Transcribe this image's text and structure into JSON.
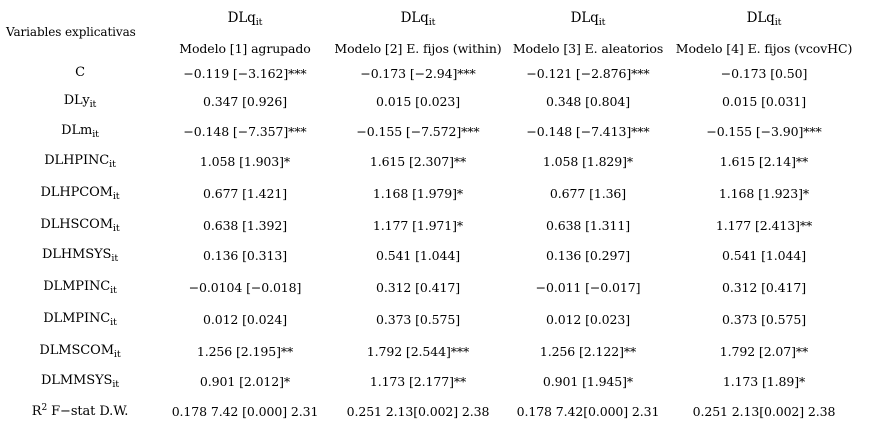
{
  "header": {
    "left_label": "Variables explicativas",
    "dependent": [
      {
        "base": "DLq",
        "sub": "it"
      },
      {
        "base": "DLq",
        "sub": "it"
      },
      {
        "base": "DLq",
        "sub": "it"
      },
      {
        "base": "DLq",
        "sub": "it"
      }
    ],
    "models": [
      "Modelo [1] agrupado",
      "Modelo [2] E. fijos (within)",
      "Modelo [3] E. aleatorios",
      "Modelo [4] E. fijos (vcovHC)"
    ]
  },
  "rows": [
    {
      "var": "C",
      "sub": "",
      "vals": [
        "−0.119 [−3.162]***",
        "−0.173 [−2.94]***",
        "−0.121 [−2.876]***",
        "−0.173 [0.50]"
      ]
    },
    {
      "var": "DLy",
      "sub": "it",
      "vals": [
        "0.347 [0.926]",
        "0.015 [0.023]",
        "0.348 [0.804]",
        "0.015 [0.031]"
      ]
    },
    {
      "var": "DLm",
      "sub": "it",
      "vals": [
        "−0.148 [−7.357]***",
        "−0.155 [−7.572]***",
        "−0.148 [−7.413]***",
        "−0.155 [−3.90]***"
      ]
    },
    {
      "var": "DLHPINC",
      "sub": "it",
      "vals": [
        "1.058 [1.903]*",
        "1.615 [2.307]**",
        "1.058 [1.829]*",
        "1.615 [2.14]**"
      ]
    },
    {
      "var": "DLHPCOM",
      "sub": "it",
      "vals": [
        "0.677 [1.421]",
        "1.168 [1.979]*",
        "0.677 [1.36]",
        "1.168 [1.923]*"
      ]
    },
    {
      "var": "DLHSCOM",
      "sub": "it",
      "vals": [
        "0.638 [1.392]",
        "1.177 [1.971]*",
        "0.638 [1.311]",
        "1.177 [2.413]**"
      ]
    },
    {
      "var": "DLHMSYS",
      "sub": "it",
      "vals": [
        "0.136 [0.313]",
        "0.541 [1.044]",
        "0.136 [0.297]",
        "0.541 [1.044]"
      ]
    },
    {
      "var": "DLMPINC",
      "sub": "it",
      "vals": [
        "−0.0104 [−0.018]",
        "0.312 [0.417]",
        "−0.011 [−0.017]",
        "0.312 [0.417]"
      ]
    },
    {
      "var": "DLMPINC",
      "sub": "it",
      "vals": [
        "0.012 [0.024]",
        "0.373 [0.575]",
        "0.012 [0.023]",
        "0.373 [0.575]"
      ]
    },
    {
      "var": "DLMSCOM",
      "sub": "it",
      "vals": [
        "1.256 [2.195]**",
        "1.792 [2.544]***",
        "1.256 [2.122]**",
        "1.792 [2.07]**"
      ]
    },
    {
      "var": "DLMMSYS",
      "sub": "it",
      "vals": [
        "0.901 [2.012]*",
        "1.173 [2.177]**",
        "0.901 [1.945]*",
        "1.173 [1.89]*"
      ]
    }
  ],
  "stats_row": {
    "label_base": "R",
    "label_sup": "2",
    "label_rest": " F−stat D.W.",
    "vals": [
      "0.178 7.42 [0.000] 2.31",
      "0.251 2.13[0.002] 2.38",
      "0.178 7.42[0.000] 2.31",
      "0.251 2.13[0.002] 2.38"
    ]
  }
}
